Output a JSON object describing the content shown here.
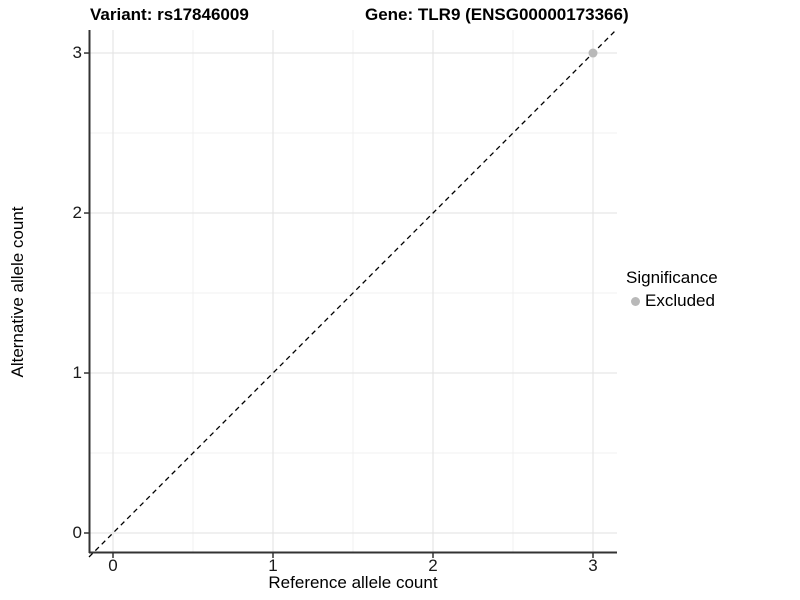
{
  "chart_data": {
    "type": "scatter",
    "title_parts": [
      "Variant: rs17846009",
      "Gene: TLR9 (ENSG00000173366)"
    ],
    "title": "Variant: rs17846009        Gene: TLR9 (ENSG00000173366)",
    "xlabel": "Reference allele count",
    "ylabel": "Alternative allele count",
    "xlim": [
      -0.15,
      3.15
    ],
    "ylim": [
      -0.125,
      3.144
    ],
    "xticks": [
      0,
      1,
      2,
      3
    ],
    "yticks": [
      0,
      1,
      2,
      3
    ],
    "xtick_labels": [
      "0",
      "1",
      "2",
      "3"
    ],
    "ytick_labels": [
      "0",
      "1",
      "2",
      "3"
    ],
    "minor_xticks": [
      0.5,
      1.5,
      2.5
    ],
    "minor_yticks": [
      0.5,
      1.5,
      2.5
    ],
    "grid": true,
    "identity_line": {
      "style": "dashed",
      "color": "#000000",
      "x1": -0.15,
      "y1": -0.15,
      "x2": 3.15,
      "y2": 3.15
    },
    "series": [
      {
        "name": "Excluded",
        "color": "#b9b9b9",
        "points": [
          {
            "x": 3,
            "y": 3
          }
        ]
      }
    ],
    "legend": {
      "title": "Significance",
      "position": "right",
      "entries": [
        {
          "label": "Excluded",
          "color": "#b9b9b9"
        }
      ]
    },
    "style": {
      "background": "#ffffff",
      "grid_major_color": "#e2e2e2",
      "grid_minor_color": "#f0f0f0",
      "axis_line_color": "#333333",
      "tick_color": "#333333",
      "point_color": "#b9b9b9",
      "text_color": "#000000"
    }
  }
}
